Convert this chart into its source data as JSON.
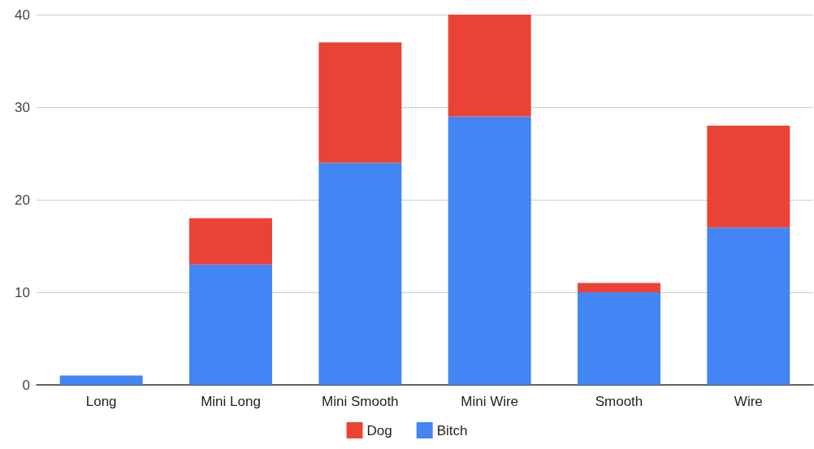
{
  "chart_data": {
    "type": "bar",
    "stacked": true,
    "categories": [
      "Long",
      "Mini Long",
      "Mini Smooth",
      "Mini Wire",
      "Smooth",
      "Wire"
    ],
    "series": [
      {
        "name": "Bitch",
        "color": "#4285f4",
        "values": [
          1,
          13,
          24,
          29,
          10,
          17
        ]
      },
      {
        "name": "Dog",
        "color": "#ea4335",
        "values": [
          0,
          5,
          13,
          11,
          1,
          11
        ]
      }
    ],
    "ylim": [
      0,
      40
    ],
    "yticks": [
      0,
      10,
      20,
      30,
      40
    ],
    "grid": "y",
    "legend": "bottom"
  }
}
